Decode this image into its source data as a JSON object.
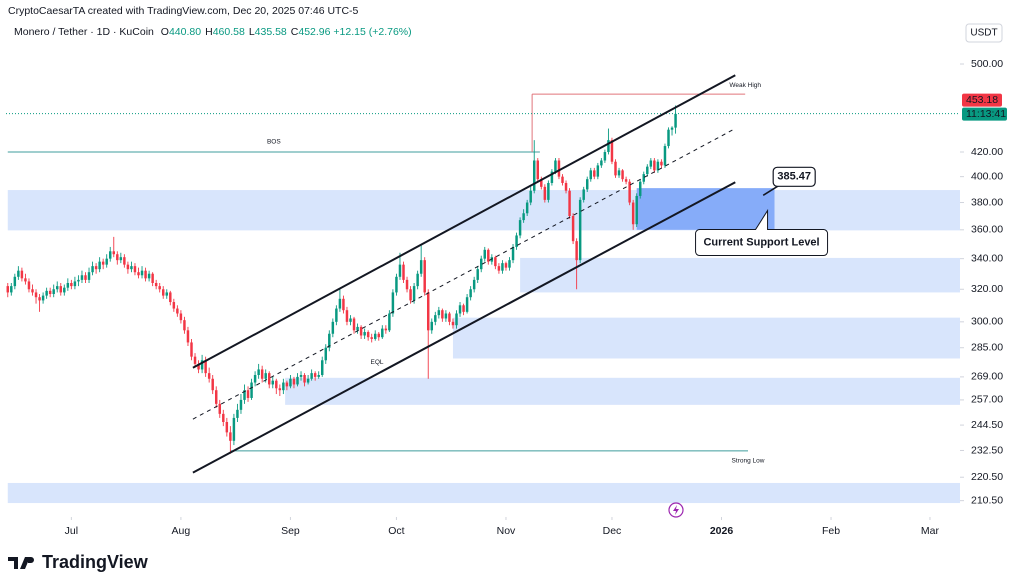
{
  "header": {
    "attribution": "CryptoCaesarTA created with TradingView.com, Dec 20, 2025 07:46 UTC-5"
  },
  "chart_data": {
    "type": "candlestick",
    "title": "Monero / Tether · 1D · KuCoin",
    "ohlc_legend": [
      {
        "key": "O",
        "value": "440.80"
      },
      {
        "key": "H",
        "value": "460.58"
      },
      {
        "key": "L",
        "value": "435.58"
      },
      {
        "key": "C",
        "value": "452.96"
      }
    ],
    "change": "+12.15 (+2.76%)",
    "currency": "USDT",
    "up_color": "#089981",
    "down_color": "#f23645",
    "log": true,
    "xlim": [
      -0.5,
      269.5
    ],
    "xticks": [
      {
        "value": 18,
        "label": "Jul"
      },
      {
        "value": 49,
        "label": "Aug"
      },
      {
        "value": 80,
        "label": "Sep"
      },
      {
        "value": 110,
        "label": "Oct"
      },
      {
        "value": 141,
        "label": "Nov"
      },
      {
        "value": 171,
        "label": "Dec"
      },
      {
        "value": 202,
        "label": "2026"
      },
      {
        "value": 233,
        "label": "Feb"
      },
      {
        "value": 261,
        "label": "Mar"
      }
    ],
    "ylim": [
      204.6,
      519.2
    ],
    "yticks": [
      {
        "value": 500,
        "label": "500.00"
      },
      {
        "value": 420,
        "label": "420.00"
      },
      {
        "value": 400,
        "label": "400.00"
      },
      {
        "value": 380,
        "label": "380.00"
      },
      {
        "value": 360,
        "label": "360.00"
      },
      {
        "value": 340,
        "label": "340.00"
      },
      {
        "value": 320,
        "label": "320.00"
      },
      {
        "value": 300,
        "label": "300.00"
      },
      {
        "value": 285,
        "label": "285.00"
      },
      {
        "value": 269,
        "label": "269.00"
      },
      {
        "value": 257,
        "label": "257.00"
      },
      {
        "value": 244.5,
        "label": "244.50"
      },
      {
        "value": 232.5,
        "label": "232.50"
      },
      {
        "value": 220.5,
        "label": "220.50"
      },
      {
        "value": 210.5,
        "label": "210.50"
      }
    ],
    "last_price": 453.18,
    "countdown": "11:13:41",
    "candles": [
      [
        322,
        324,
        315,
        318
      ],
      [
        318,
        324,
        316,
        322
      ],
      [
        322,
        330,
        320,
        328
      ],
      [
        328,
        335,
        326,
        332
      ],
      [
        332,
        334,
        325,
        327
      ],
      [
        327,
        330,
        323,
        325
      ],
      [
        325,
        327,
        318,
        320
      ],
      [
        320,
        323,
        316,
        318
      ],
      [
        318,
        320,
        311,
        315
      ],
      [
        315,
        317,
        306,
        313
      ],
      [
        313,
        318,
        311,
        316
      ],
      [
        316,
        321,
        314,
        319
      ],
      [
        319,
        321,
        315,
        317
      ],
      [
        317,
        323,
        315,
        320
      ],
      [
        320,
        325,
        318,
        322
      ],
      [
        322,
        324,
        316,
        318
      ],
      [
        318,
        323,
        316,
        321
      ],
      [
        321,
        327,
        319,
        324
      ],
      [
        324,
        326,
        320,
        322
      ],
      [
        322,
        328,
        320,
        325
      ],
      [
        325,
        329,
        322,
        326
      ],
      [
        326,
        332,
        324,
        329
      ],
      [
        329,
        331,
        324,
        326
      ],
      [
        326,
        334,
        324,
        331
      ],
      [
        331,
        338,
        329,
        335
      ],
      [
        335,
        337,
        330,
        333
      ],
      [
        333,
        341,
        331,
        338
      ],
      [
        338,
        340,
        333,
        336
      ],
      [
        336,
        343,
        334,
        340
      ],
      [
        340,
        348,
        338,
        345
      ],
      [
        345,
        355,
        341,
        343
      ],
      [
        343,
        345,
        336,
        339
      ],
      [
        339,
        344,
        337,
        341
      ],
      [
        341,
        343,
        334,
        336
      ],
      [
        336,
        338,
        330,
        333
      ],
      [
        333,
        338,
        331,
        335
      ],
      [
        335,
        337,
        329,
        331
      ],
      [
        331,
        334,
        327,
        329
      ],
      [
        329,
        335,
        327,
        332
      ],
      [
        332,
        334,
        325,
        327
      ],
      [
        327,
        332,
        325,
        330
      ],
      [
        330,
        331,
        322,
        324
      ],
      [
        324,
        326,
        320,
        322
      ],
      [
        322,
        324,
        318,
        320
      ],
      [
        320,
        322,
        314,
        316
      ],
      [
        316,
        320,
        314,
        318
      ],
      [
        318,
        319,
        310,
        312
      ],
      [
        312,
        314,
        306,
        308
      ],
      [
        308,
        310,
        303,
        305
      ],
      [
        305,
        307,
        299,
        301
      ],
      [
        301,
        303,
        293,
        295
      ],
      [
        295,
        297,
        286,
        288
      ],
      [
        288,
        290,
        278,
        280
      ],
      [
        280,
        282,
        274,
        276
      ],
      [
        276,
        278,
        271,
        273
      ],
      [
        273,
        281,
        271,
        278
      ],
      [
        278,
        280,
        269,
        271
      ],
      [
        271,
        274,
        266,
        268
      ],
      [
        268,
        270,
        260,
        262
      ],
      [
        262,
        264,
        253,
        255
      ],
      [
        255,
        257,
        248,
        250
      ],
      [
        250,
        252,
        244,
        246
      ],
      [
        246,
        248,
        239,
        241
      ],
      [
        241,
        244,
        231,
        237
      ],
      [
        237,
        250,
        235,
        248
      ],
      [
        248,
        255,
        246,
        252
      ],
      [
        252,
        260,
        250,
        257
      ],
      [
        257,
        265,
        255,
        262
      ],
      [
        262,
        264,
        256,
        258
      ],
      [
        258,
        268,
        257,
        266
      ],
      [
        266,
        272,
        264,
        270
      ],
      [
        270,
        276,
        268,
        273
      ],
      [
        273,
        275,
        266,
        268
      ],
      [
        268,
        273,
        266,
        271
      ],
      [
        271,
        272,
        263,
        265
      ],
      [
        265,
        269,
        263,
        267
      ],
      [
        267,
        268,
        260,
        263
      ],
      [
        263,
        265,
        259,
        262
      ],
      [
        262,
        268,
        260,
        266
      ],
      [
        266,
        267,
        262,
        264
      ],
      [
        264,
        270,
        263,
        268
      ],
      [
        268,
        269,
        263,
        265
      ],
      [
        265,
        271,
        264,
        269
      ],
      [
        269,
        272,
        267,
        270
      ],
      [
        270,
        271,
        264,
        266
      ],
      [
        266,
        270,
        265,
        268
      ],
      [
        268,
        273,
        267,
        271
      ],
      [
        271,
        272,
        267,
        269
      ],
      [
        269,
        272,
        268,
        270
      ],
      [
        270,
        280,
        269,
        278
      ],
      [
        278,
        287,
        276,
        285
      ],
      [
        285,
        295,
        283,
        293
      ],
      [
        293,
        302,
        291,
        300
      ],
      [
        300,
        310,
        298,
        308
      ],
      [
        308,
        320,
        306,
        314
      ],
      [
        314,
        316,
        305,
        307
      ],
      [
        307,
        309,
        298,
        300
      ],
      [
        300,
        304,
        298,
        302
      ],
      [
        302,
        303,
        293,
        295
      ],
      [
        295,
        299,
        293,
        297
      ],
      [
        297,
        298,
        290,
        292
      ],
      [
        292,
        296,
        290,
        294
      ],
      [
        294,
        295,
        289,
        291
      ],
      [
        291,
        293,
        288,
        290
      ],
      [
        290,
        295,
        289,
        293
      ],
      [
        293,
        294,
        289,
        291
      ],
      [
        291,
        298,
        290,
        296
      ],
      [
        296,
        298,
        293,
        295
      ],
      [
        295,
        307,
        294,
        305
      ],
      [
        305,
        320,
        303,
        318
      ],
      [
        318,
        330,
        316,
        328
      ],
      [
        328,
        344,
        326,
        336
      ],
      [
        336,
        338,
        324,
        326
      ],
      [
        326,
        328,
        318,
        320
      ],
      [
        320,
        322,
        311,
        313
      ],
      [
        313,
        324,
        311,
        322
      ],
      [
        322,
        332,
        320,
        330
      ],
      [
        330,
        349,
        328,
        339
      ],
      [
        339,
        341,
        316,
        318
      ],
      [
        318,
        320,
        268,
        295
      ],
      [
        295,
        302,
        293,
        300
      ],
      [
        300,
        306,
        298,
        304
      ],
      [
        304,
        309,
        302,
        307
      ],
      [
        307,
        308,
        300,
        302
      ],
      [
        302,
        307,
        300,
        305
      ],
      [
        305,
        306,
        298,
        300
      ],
      [
        300,
        302,
        296,
        298
      ],
      [
        298,
        307,
        296,
        305
      ],
      [
        305,
        312,
        303,
        310
      ],
      [
        310,
        311,
        304,
        306
      ],
      [
        306,
        317,
        305,
        315
      ],
      [
        315,
        322,
        313,
        320
      ],
      [
        320,
        328,
        318,
        326
      ],
      [
        326,
        335,
        324,
        333
      ],
      [
        333,
        342,
        331,
        340
      ],
      [
        340,
        348,
        338,
        346
      ],
      [
        346,
        347,
        336,
        338
      ],
      [
        338,
        343,
        336,
        341
      ],
      [
        341,
        342,
        333,
        335
      ],
      [
        335,
        337,
        330,
        332
      ],
      [
        332,
        339,
        330,
        337
      ],
      [
        337,
        338,
        332,
        334
      ],
      [
        334,
        341,
        332,
        339
      ],
      [
        339,
        350,
        337,
        348
      ],
      [
        348,
        358,
        346,
        356
      ],
      [
        356,
        369,
        354,
        367
      ],
      [
        367,
        375,
        365,
        372
      ],
      [
        372,
        382,
        370,
        380
      ],
      [
        380,
        392,
        378,
        389
      ],
      [
        389,
        430,
        387,
        413
      ],
      [
        413,
        415,
        396,
        398
      ],
      [
        398,
        400,
        390,
        392
      ],
      [
        392,
        394,
        380,
        382
      ],
      [
        382,
        397,
        380,
        395
      ],
      [
        395,
        406,
        393,
        404
      ],
      [
        404,
        415,
        402,
        413
      ],
      [
        413,
        415,
        398,
        400
      ],
      [
        400,
        402,
        393,
        395
      ],
      [
        395,
        397,
        387,
        389
      ],
      [
        389,
        391,
        368,
        370
      ],
      [
        370,
        372,
        350,
        352
      ],
      [
        352,
        354,
        320,
        339
      ],
      [
        339,
        384,
        337,
        382
      ],
      [
        382,
        392,
        380,
        390
      ],
      [
        390,
        400,
        388,
        398
      ],
      [
        398,
        407,
        396,
        405
      ],
      [
        405,
        407,
        398,
        400
      ],
      [
        400,
        411,
        398,
        409
      ],
      [
        409,
        415,
        407,
        413
      ],
      [
        413,
        422,
        411,
        420
      ],
      [
        420,
        440,
        418,
        430
      ],
      [
        430,
        432,
        410,
        412
      ],
      [
        412,
        414,
        399,
        401
      ],
      [
        401,
        407,
        399,
        405
      ],
      [
        405,
        406,
        396,
        398
      ],
      [
        398,
        400,
        394,
        396
      ],
      [
        396,
        398,
        378,
        380
      ],
      [
        380,
        382,
        360,
        364
      ],
      [
        364,
        387,
        362,
        385
      ],
      [
        385,
        398,
        383,
        396
      ],
      [
        396,
        404,
        394,
        402
      ],
      [
        402,
        410,
        400,
        408
      ],
      [
        408,
        415,
        406,
        413
      ],
      [
        413,
        415,
        403,
        405
      ],
      [
        405,
        414,
        403,
        412
      ],
      [
        412,
        414,
        407,
        409
      ],
      [
        409,
        427,
        407,
        425
      ],
      [
        425,
        441,
        423,
        439
      ],
      [
        439,
        442,
        434,
        440.8
      ],
      [
        440.8,
        460.58,
        435.58,
        452.96
      ]
    ],
    "zones": [
      {
        "low": 359.6,
        "high": 389.5,
        "start": 0,
        "color": "#d8e5fc"
      },
      {
        "low": 318,
        "high": 340.5,
        "start": 145,
        "color": "#d8e5fc"
      },
      {
        "low": 279,
        "high": 302.5,
        "start": 126,
        "color": "#d8e5fc"
      },
      {
        "low": 254.5,
        "high": 268.5,
        "start": 78.5,
        "color": "#d8e5fc"
      },
      {
        "low": 209.5,
        "high": 218,
        "start": 0,
        "color": "#d8e5fc"
      },
      {
        "low": 360,
        "high": 391,
        "start": 178,
        "end": 217,
        "color": "#86acf9"
      }
    ],
    "levels": [
      {
        "label": "BOS",
        "value": 420,
        "start": 0,
        "end": 150.6,
        "color": "#3f9c9c"
      },
      {
        "label": "Weak High",
        "value": 471,
        "start": 148.4,
        "end": 208.7,
        "color": "#e0747a"
      },
      {
        "label": "Strong Low",
        "value": 232.3,
        "start": 62.9,
        "end": 209.5,
        "color": "#3f9c9c"
      }
    ],
    "channel": [
      {
        "x": [
          52.4,
          205.9
        ],
        "values": [
          273.9,
          489
        ],
        "style": "solid"
      },
      {
        "x": [
          52.4,
          205.9
        ],
        "values": [
          247.4,
          440
        ],
        "style": "dashed"
      },
      {
        "x": [
          52.4,
          205.9
        ],
        "values": [
          222.5,
          395.6
        ],
        "style": "solid"
      }
    ],
    "annotations": [
      {
        "text": "EQL",
        "x": 104.5,
        "y": 277
      }
    ],
    "price_callout": {
      "value": 385.47,
      "x": 213.8
    },
    "support_callout": {
      "text": "Current Support Level",
      "x": 215.6,
      "y": 374
    }
  },
  "footer": {
    "brand": "TradingView"
  }
}
